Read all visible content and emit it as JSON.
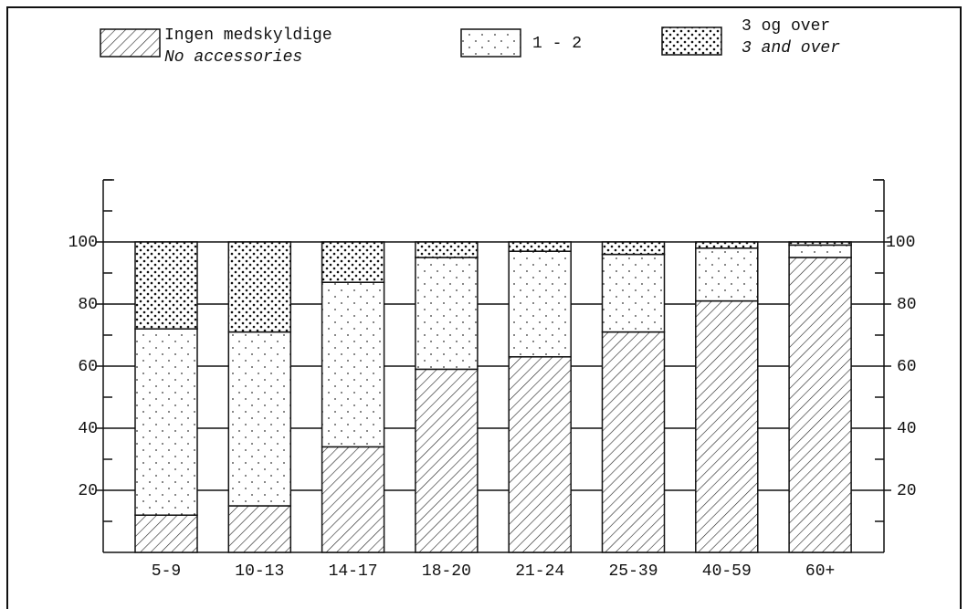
{
  "chart_data": {
    "type": "stacked_bar",
    "categories": [
      "5-9",
      "10-13",
      "14-17",
      "18-20",
      "21-24",
      "25-39",
      "40-59",
      "60+"
    ],
    "series": [
      {
        "name": "Ingen medskyldige",
        "name_en": "No accessories",
        "pattern": "hatch",
        "color": "#111111",
        "values": [
          12,
          15,
          34,
          59,
          63,
          71,
          81,
          95
        ]
      },
      {
        "name": "1 - 2",
        "pattern": "sparse-dots",
        "color": "#111111",
        "values": [
          60,
          56,
          53,
          36,
          34,
          25,
          17,
          4
        ]
      },
      {
        "name": "3 og over",
        "name_en": "3 and over",
        "pattern": "dense-dots",
        "color": "#111111",
        "values": [
          28,
          29,
          13,
          5,
          3,
          4,
          2,
          1
        ]
      }
    ],
    "ylim": [
      0,
      120
    ],
    "yticks": [
      20,
      40,
      60,
      80,
      100
    ],
    "yminor_ticks": [
      10,
      30,
      50,
      70,
      90,
      110,
      120
    ],
    "grid": true,
    "right_axis_labels": true,
    "legend": "top"
  }
}
